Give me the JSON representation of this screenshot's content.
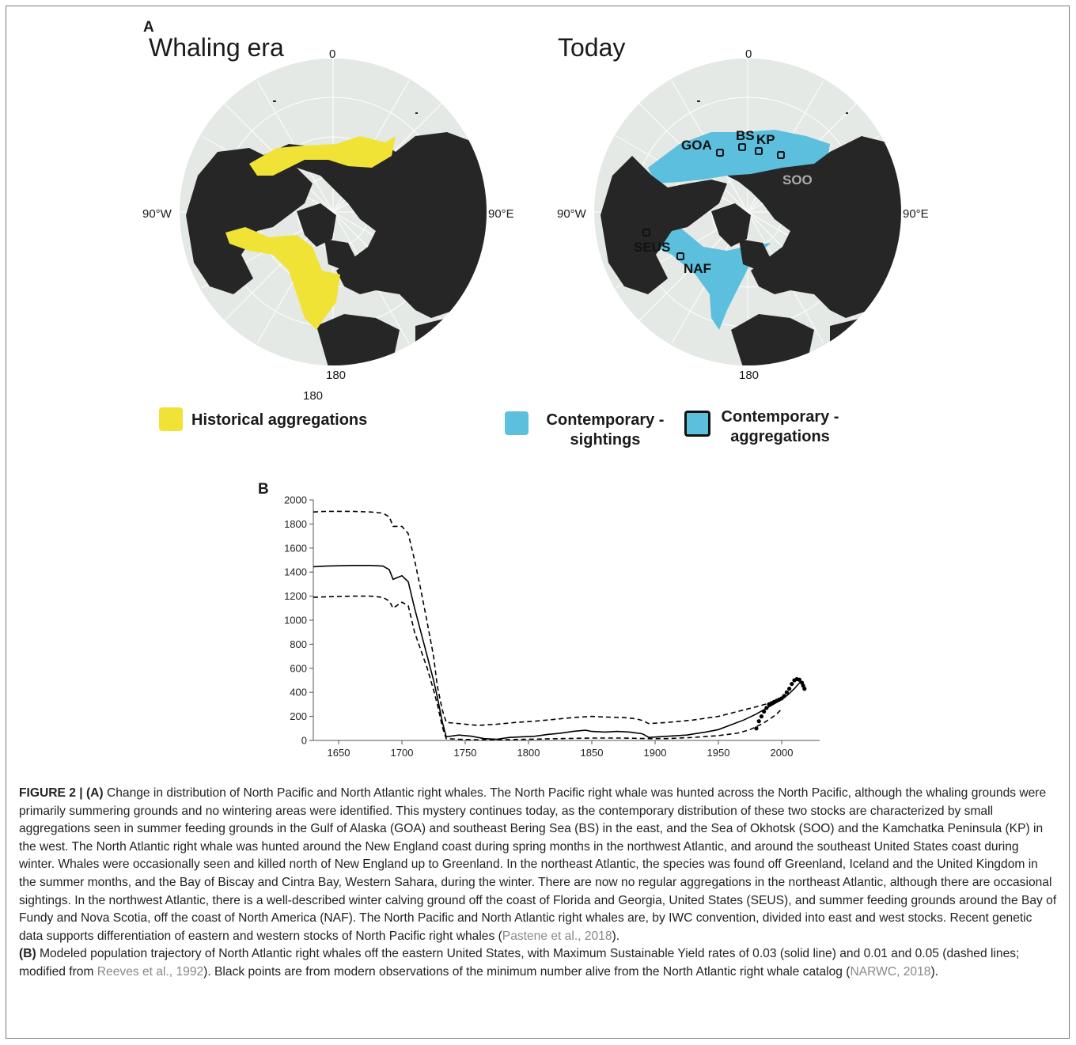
{
  "panel_a": {
    "letter": "A",
    "maps": [
      {
        "title": "Whaling era",
        "labels": {
          "top": "0",
          "left": "90°W",
          "right": "90°E",
          "bottom": "180",
          "bottom_extra": "180"
        }
      },
      {
        "title": "Today",
        "labels": {
          "top": "0",
          "left": "90°W",
          "right": "90°E",
          "bottom": "180"
        },
        "sites": [
          {
            "code": "GOA",
            "color": "#111111"
          },
          {
            "code": "BS",
            "color": "#111111"
          },
          {
            "code": "KP",
            "color": "#111111"
          },
          {
            "code": "SOO",
            "color": "#aaaaaa"
          },
          {
            "code": "SEUS",
            "color": "#111111"
          },
          {
            "code": "NAF",
            "color": "#111111"
          }
        ]
      }
    ],
    "legend": {
      "historical": {
        "label": "Historical aggregations",
        "color": "#f1e335"
      },
      "sightings": {
        "label_line1": "Contemporary -",
        "label_line2": "sightings",
        "color": "#5bbfdd"
      },
      "aggregations": {
        "label_line1": "Contemporary -",
        "label_line2": "aggregations",
        "color": "#5bbfdd"
      }
    },
    "colors": {
      "ocean": "#e4e9e5",
      "land": "#262626",
      "grid": "#ffffff"
    }
  },
  "panel_b": {
    "letter": "B",
    "chart_data": {
      "type": "line",
      "title": "",
      "xlabel": "",
      "ylabel": "",
      "xlim": [
        1630,
        2030
      ],
      "ylim": [
        0,
        2000
      ],
      "xticks": [
        1650,
        1700,
        1750,
        1800,
        1850,
        1900,
        1950,
        2000
      ],
      "yticks": [
        0,
        200,
        400,
        600,
        800,
        1000,
        1200,
        1400,
        1600,
        1800,
        2000
      ],
      "grid": false,
      "series": [
        {
          "style": "solid",
          "x": [
            1630,
            1640,
            1660,
            1675,
            1685,
            1690,
            1693,
            1700,
            1705,
            1710,
            1715,
            1720,
            1725,
            1728,
            1732,
            1735,
            1745,
            1755,
            1765,
            1775,
            1785,
            1795,
            1805,
            1815,
            1825,
            1835,
            1845,
            1850,
            1860,
            1870,
            1880,
            1890,
            1895,
            1910,
            1925,
            1940,
            1950,
            1960,
            1970,
            1980,
            1990,
            2000,
            2005,
            2010,
            2015
          ],
          "y": [
            1445,
            1450,
            1455,
            1455,
            1450,
            1420,
            1340,
            1370,
            1320,
            1100,
            900,
            700,
            500,
            360,
            150,
            30,
            45,
            35,
            15,
            10,
            25,
            30,
            35,
            50,
            60,
            75,
            85,
            75,
            70,
            75,
            70,
            55,
            25,
            35,
            45,
            70,
            90,
            130,
            170,
            220,
            280,
            340,
            380,
            430,
            490
          ]
        },
        {
          "style": "dashed",
          "x": [
            1630,
            1640,
            1660,
            1675,
            1685,
            1690,
            1693,
            1700,
            1705,
            1710,
            1715,
            1720,
            1725,
            1728,
            1732,
            1735,
            1745,
            1760,
            1775,
            1790,
            1805,
            1820,
            1835,
            1850,
            1860,
            1875,
            1885,
            1890,
            1895,
            1910,
            1930,
            1950,
            1965,
            1980,
            1990,
            2000
          ],
          "y": [
            1900,
            1905,
            1905,
            1900,
            1890,
            1860,
            1780,
            1780,
            1720,
            1500,
            1250,
            980,
            700,
            450,
            250,
            150,
            140,
            125,
            135,
            150,
            160,
            175,
            190,
            200,
            195,
            190,
            180,
            165,
            140,
            150,
            170,
            200,
            240,
            280,
            310,
            345
          ]
        },
        {
          "style": "dashed",
          "x": [
            1630,
            1640,
            1660,
            1675,
            1685,
            1690,
            1693,
            1700,
            1705,
            1710,
            1715,
            1720,
            1725,
            1728,
            1732,
            1735,
            1745,
            1760,
            1775,
            1800,
            1825,
            1850,
            1875,
            1895,
            1910,
            1930,
            1950,
            1965,
            1975,
            1985,
            1995,
            2000
          ],
          "y": [
            1190,
            1195,
            1200,
            1200,
            1190,
            1160,
            1100,
            1150,
            1120,
            900,
            750,
            600,
            420,
            300,
            110,
            15,
            10,
            5,
            5,
            10,
            15,
            20,
            20,
            15,
            15,
            25,
            40,
            60,
            90,
            140,
            210,
            260
          ]
        },
        {
          "style": "points",
          "x": [
            1980,
            1982,
            1984,
            1986,
            1988,
            1990,
            1992,
            1994,
            1996,
            1998,
            2000,
            2002,
            2004,
            2006,
            2008,
            2010,
            2012,
            2014,
            2016,
            2017,
            2018
          ],
          "y": [
            100,
            160,
            200,
            240,
            270,
            300,
            310,
            320,
            330,
            340,
            350,
            370,
            400,
            430,
            470,
            500,
            510,
            505,
            480,
            455,
            430
          ]
        }
      ]
    }
  },
  "caption": {
    "label": "FIGURE 2 |",
    "a_tag": "(A)",
    "a_text_1": "Change in distribution of North Pacific and North Atlantic right whales. The North Pacific right whale was hunted across the North Pacific, although the whaling grounds were primarily summering grounds and no wintering areas were identified. This mystery continues today, as the contemporary distribution of these two stocks are characterized by small aggregations seen in summer feeding grounds in the Gulf of Alaska (GOA) and southeast Bering Sea (BS) in the east, and the Sea of Okhotsk (SOO) and the Kamchatka Peninsula (KP) in the west. The North Atlantic right whale was hunted around the New England coast during spring months in the northwest Atlantic, and around the southeast United States coast during winter. Whales were occasionally seen and killed north of New England up to Greenland. In the northeast Atlantic, the species was found off Greenland, Iceland and the United Kingdom in the summer months, and the Bay of Biscay and Cintra Bay, Western Sahara, during the winter. There are now no regular aggregations in the northeast Atlantic, although there are occasional sightings. In the northwest Atlantic, there is a well-described winter calving ground off the coast of Florida and Georgia, United States (SEUS), and summer feeding grounds around the Bay of Fundy and Nova Scotia, off the coast of North America (NAF). The North Pacific and North Atlantic right whales are, by IWC convention, divided into east and west stocks. Recent genetic data supports differentiation of eastern and western stocks of North Pacific right whales (",
    "a_ref": "Pastene et al., 2018",
    "a_text_2": ").",
    "b_tag": "(B)",
    "b_text_1": "Modeled population trajectory of North Atlantic right whales off the eastern United States, with Maximum Sustainable Yield rates of 0.03 (solid line) and 0.01 and 0.05 (dashed lines; modified from ",
    "b_ref_1": "Reeves et al., 1992",
    "b_text_2": "). Black points are from modern observations of the minimum number alive from the North Atlantic right whale catalog (",
    "b_ref_2": "NARWC, 2018",
    "b_text_3": ")."
  }
}
